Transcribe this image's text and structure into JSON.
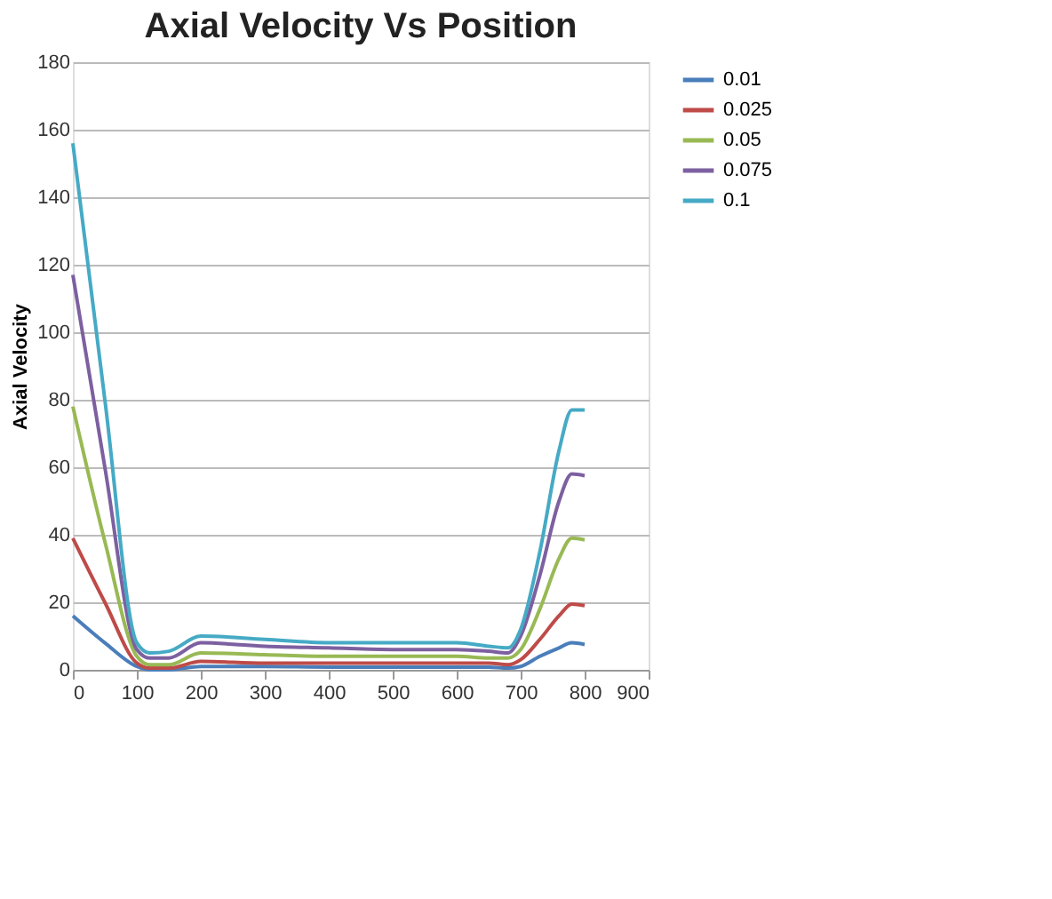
{
  "chart_data": {
    "type": "line",
    "title": "Axial Velocity Vs Position",
    "ylabel": "Axial Velocity",
    "x": [
      0,
      50,
      100,
      120,
      150,
      200,
      300,
      400,
      500,
      600,
      650,
      680,
      700,
      730,
      760,
      780,
      800
    ],
    "xlim": [
      0,
      900
    ],
    "xticks": [
      0,
      100,
      200,
      300,
      400,
      500,
      600,
      700,
      800,
      900
    ],
    "ylim": [
      0,
      180
    ],
    "yticks": [
      0,
      20,
      40,
      60,
      80,
      100,
      120,
      140,
      160,
      180
    ],
    "grid": "y",
    "legend": "right",
    "marker": "none",
    "line_style": "solid",
    "series": [
      {
        "name": "0.01",
        "color": "#4a7ebb",
        "values": [
          16,
          8,
          1,
          0,
          0,
          1,
          1,
          0.8,
          0.8,
          0.8,
          0.8,
          0.5,
          1,
          4,
          6.5,
          8,
          7.5
        ]
      },
      {
        "name": "0.025",
        "color": "#be4b48",
        "values": [
          39,
          20,
          2,
          0.5,
          0.5,
          2.5,
          2,
          2,
          2,
          2,
          2,
          1.5,
          3,
          9,
          16,
          19.5,
          19
        ]
      },
      {
        "name": "0.05",
        "color": "#98b954",
        "values": [
          78,
          38,
          4,
          1.5,
          1.5,
          5,
          4.5,
          4,
          4,
          4,
          3.5,
          3.5,
          6,
          18,
          33,
          39,
          38.5
        ]
      },
      {
        "name": "0.075",
        "color": "#7d60a0",
        "values": [
          117,
          60,
          6,
          3.5,
          3.5,
          8,
          7,
          6.5,
          6,
          6,
          5.5,
          5,
          10,
          28,
          50,
          58,
          57.5
        ]
      },
      {
        "name": "0.1",
        "color": "#46aac5",
        "values": [
          156,
          80,
          8,
          5,
          5.5,
          10,
          9,
          8,
          8,
          8,
          7,
          6.5,
          12,
          35,
          65,
          77,
          77
        ]
      }
    ]
  }
}
